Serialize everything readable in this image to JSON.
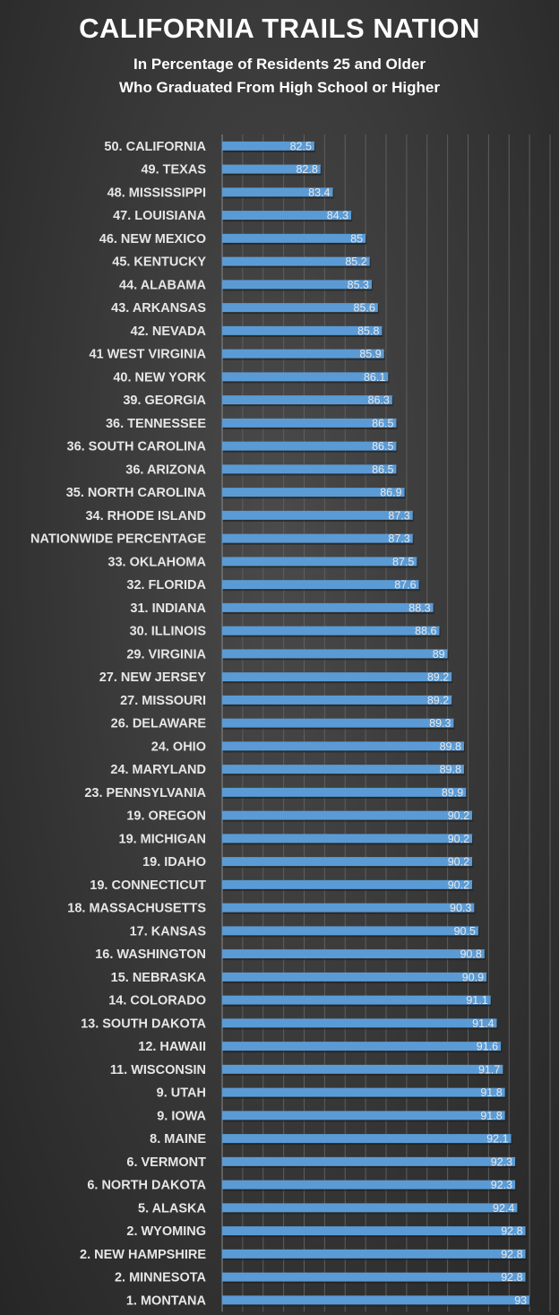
{
  "chart_data": {
    "type": "bar",
    "orientation": "horizontal",
    "title": "CALIFORNIA TRAILS NATION",
    "subtitle": [
      "In Percentage of Residents 25 and Older",
      "Who Graduated  From High School or Higher"
    ],
    "xlim": [
      78,
      94
    ],
    "grid": true,
    "bar_color": "#5b9bd5",
    "categories": [
      "50. CALIFORNIA",
      "49. TEXAS",
      "48. MISSISSIPPI",
      "47. LOUISIANA",
      "46. NEW MEXICO",
      "45. KENTUCKY",
      "44. ALABAMA",
      "43. ARKANSAS",
      "42. NEVADA",
      "41 WEST VIRGINIA",
      "40. NEW YORK",
      "39. GEORGIA",
      "36. TENNESSEE",
      "36. SOUTH CAROLINA",
      "36. ARIZONA",
      "35. NORTH CAROLINA",
      "34. RHODE ISLAND",
      "NATIONWIDE PERCENTAGE",
      "33. OKLAHOMA",
      "32. FLORIDA",
      "31. INDIANA",
      "30. ILLINOIS",
      "29. VIRGINIA",
      "27. NEW JERSEY",
      "27. MISSOURI",
      "26. DELAWARE",
      "24. OHIO",
      "24. MARYLAND",
      "23. PENNSYLVANIA",
      "19. OREGON",
      "19. MICHIGAN",
      "19. IDAHO",
      "19. CONNECTICUT",
      "18. MASSACHUSETTS",
      "17. KANSAS",
      "16. WASHINGTON",
      "15. NEBRASKA",
      "14. COLORADO",
      "13. SOUTH DAKOTA",
      "12. HAWAII",
      "11. WISCONSIN",
      "9. UTAH",
      "9. IOWA",
      "8. MAINE",
      "6. VERMONT",
      "6. NORTH DAKOTA",
      "5. ALASKA",
      "2. WYOMING",
      "2. NEW HAMPSHIRE",
      "2. MINNESOTA",
      "1. MONTANA"
    ],
    "values": [
      82.5,
      82.8,
      83.4,
      84.3,
      85,
      85.2,
      85.3,
      85.6,
      85.8,
      85.9,
      86.1,
      86.3,
      86.5,
      86.5,
      86.5,
      86.9,
      87.3,
      87.3,
      87.5,
      87.6,
      88.3,
      88.6,
      89,
      89.2,
      89.2,
      89.3,
      89.8,
      89.8,
      89.9,
      90.2,
      90.2,
      90.2,
      90.2,
      90.3,
      90.5,
      90.8,
      90.9,
      91.1,
      91.4,
      91.6,
      91.7,
      91.8,
      91.8,
      92.1,
      92.3,
      92.3,
      92.4,
      92.8,
      92.8,
      92.8,
      93
    ]
  }
}
